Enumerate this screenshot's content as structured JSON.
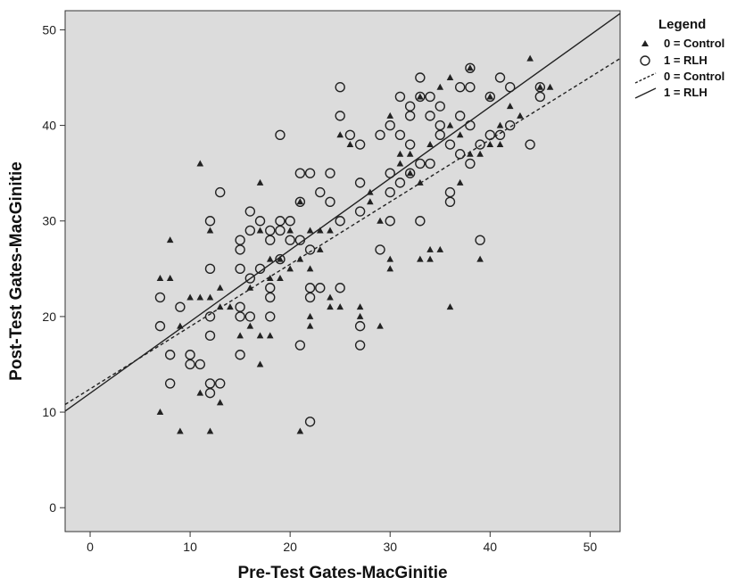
{
  "chart_data": {
    "type": "scatter",
    "xlabel": "Pre-Test Gates-MacGinitie",
    "ylabel": "Post-Test Gates-MacGinitie",
    "xlim": [
      -2.5,
      53
    ],
    "ylim": [
      -2.5,
      52
    ],
    "xticks": [
      "0",
      "10",
      "20",
      "30",
      "40",
      "50"
    ],
    "yticks": [
      "0",
      "10",
      "20",
      "30",
      "40",
      "50"
    ],
    "grid": false,
    "legend": {
      "title": "Legend",
      "placement": "top-right",
      "entries": [
        "0 = Control",
        "1 = RLH",
        "0 = Control",
        "1 = RLH"
      ]
    },
    "series": [
      {
        "name": "0 = Control",
        "marker": "triangle",
        "points": [
          [
            7,
            10
          ],
          [
            7,
            24
          ],
          [
            8,
            24
          ],
          [
            8,
            28
          ],
          [
            9,
            19
          ],
          [
            9,
            8
          ],
          [
            10,
            22
          ],
          [
            11,
            36
          ],
          [
            11,
            22
          ],
          [
            11,
            12
          ],
          [
            12,
            29
          ],
          [
            12,
            22
          ],
          [
            12,
            8
          ],
          [
            13,
            23
          ],
          [
            13,
            21
          ],
          [
            13,
            11
          ],
          [
            14,
            21
          ],
          [
            15,
            18
          ],
          [
            16,
            23
          ],
          [
            16,
            19
          ],
          [
            17,
            34
          ],
          [
            17,
            29
          ],
          [
            17,
            18
          ],
          [
            17,
            15
          ],
          [
            18,
            26
          ],
          [
            18,
            24
          ],
          [
            18,
            18
          ],
          [
            19,
            24
          ],
          [
            19,
            26
          ],
          [
            20,
            29
          ],
          [
            20,
            25
          ],
          [
            21,
            26
          ],
          [
            21,
            32
          ],
          [
            21,
            8
          ],
          [
            22,
            29
          ],
          [
            22,
            25
          ],
          [
            22,
            20
          ],
          [
            22,
            19
          ],
          [
            23,
            29
          ],
          [
            23,
            27
          ],
          [
            24,
            22
          ],
          [
            24,
            21
          ],
          [
            24,
            29
          ],
          [
            25,
            21
          ],
          [
            25,
            39
          ],
          [
            26,
            38
          ],
          [
            27,
            21
          ],
          [
            27,
            20
          ],
          [
            28,
            33
          ],
          [
            28,
            32
          ],
          [
            29,
            19
          ],
          [
            29,
            30
          ],
          [
            30,
            41
          ],
          [
            30,
            26
          ],
          [
            30,
            25
          ],
          [
            31,
            37
          ],
          [
            31,
            36
          ],
          [
            32,
            37
          ],
          [
            32,
            35
          ],
          [
            33,
            26
          ],
          [
            33,
            34
          ],
          [
            33,
            43
          ],
          [
            34,
            27
          ],
          [
            34,
            26
          ],
          [
            34,
            38
          ],
          [
            35,
            27
          ],
          [
            35,
            44
          ],
          [
            36,
            45
          ],
          [
            36,
            40
          ],
          [
            36,
            21
          ],
          [
            37,
            39
          ],
          [
            37,
            34
          ],
          [
            38,
            37
          ],
          [
            38,
            46
          ],
          [
            39,
            37
          ],
          [
            39,
            26
          ],
          [
            40,
            43
          ],
          [
            40,
            38
          ],
          [
            41,
            38
          ],
          [
            41,
            40
          ],
          [
            42,
            42
          ],
          [
            43,
            41
          ],
          [
            44,
            47
          ],
          [
            45,
            44
          ],
          [
            46,
            44
          ]
        ]
      },
      {
        "name": "1 = RLH",
        "marker": "circle",
        "points": [
          [
            7,
            22
          ],
          [
            7,
            19
          ],
          [
            8,
            16
          ],
          [
            8,
            13
          ],
          [
            9,
            21
          ],
          [
            10,
            16
          ],
          [
            10,
            15
          ],
          [
            11,
            15
          ],
          [
            12,
            30
          ],
          [
            12,
            25
          ],
          [
            12,
            20
          ],
          [
            12,
            18
          ],
          [
            12,
            13
          ],
          [
            12,
            12
          ],
          [
            13,
            33
          ],
          [
            13,
            13
          ],
          [
            15,
            28
          ],
          [
            15,
            27
          ],
          [
            15,
            25
          ],
          [
            15,
            21
          ],
          [
            15,
            20
          ],
          [
            15,
            16
          ],
          [
            16,
            31
          ],
          [
            16,
            29
          ],
          [
            16,
            24
          ],
          [
            16,
            20
          ],
          [
            17,
            30
          ],
          [
            17,
            25
          ],
          [
            18,
            29
          ],
          [
            18,
            28
          ],
          [
            18,
            23
          ],
          [
            18,
            22
          ],
          [
            18,
            20
          ],
          [
            19,
            39
          ],
          [
            19,
            30
          ],
          [
            19,
            29
          ],
          [
            19,
            26
          ],
          [
            20,
            30
          ],
          [
            20,
            28
          ],
          [
            21,
            35
          ],
          [
            21,
            32
          ],
          [
            21,
            28
          ],
          [
            21,
            17
          ],
          [
            22,
            35
          ],
          [
            22,
            27
          ],
          [
            22,
            23
          ],
          [
            22,
            22
          ],
          [
            22,
            9
          ],
          [
            23,
            33
          ],
          [
            23,
            23
          ],
          [
            24,
            35
          ],
          [
            24,
            32
          ],
          [
            25,
            44
          ],
          [
            25,
            41
          ],
          [
            25,
            30
          ],
          [
            25,
            23
          ],
          [
            26,
            39
          ],
          [
            27,
            38
          ],
          [
            27,
            34
          ],
          [
            27,
            31
          ],
          [
            27,
            19
          ],
          [
            27,
            17
          ],
          [
            29,
            39
          ],
          [
            29,
            27
          ],
          [
            30,
            40
          ],
          [
            30,
            35
          ],
          [
            30,
            33
          ],
          [
            30,
            30
          ],
          [
            31,
            43
          ],
          [
            31,
            39
          ],
          [
            31,
            34
          ],
          [
            32,
            42
          ],
          [
            32,
            41
          ],
          [
            32,
            38
          ],
          [
            32,
            35
          ],
          [
            33,
            45
          ],
          [
            33,
            43
          ],
          [
            33,
            36
          ],
          [
            33,
            30
          ],
          [
            34,
            43
          ],
          [
            34,
            41
          ],
          [
            34,
            36
          ],
          [
            35,
            42
          ],
          [
            35,
            39
          ],
          [
            35,
            40
          ],
          [
            36,
            38
          ],
          [
            36,
            33
          ],
          [
            36,
            32
          ],
          [
            37,
            44
          ],
          [
            37,
            41
          ],
          [
            37,
            37
          ],
          [
            38,
            46
          ],
          [
            38,
            44
          ],
          [
            38,
            40
          ],
          [
            38,
            36
          ],
          [
            39,
            38
          ],
          [
            39,
            28
          ],
          [
            40,
            43
          ],
          [
            40,
            39
          ],
          [
            41,
            45
          ],
          [
            41,
            39
          ],
          [
            42,
            40
          ],
          [
            42,
            44
          ],
          [
            44,
            38
          ],
          [
            45,
            44
          ],
          [
            45,
            43
          ]
        ]
      },
      {
        "name": "0 = Control",
        "marker": "dashed-line",
        "line": [
          [
            -2.5,
            10.8
          ],
          [
            53,
            47
          ]
        ]
      },
      {
        "name": "1 = RLH",
        "marker": "solid-line",
        "line": [
          [
            -2.5,
            10.1
          ],
          [
            53,
            51.7
          ]
        ]
      }
    ]
  }
}
